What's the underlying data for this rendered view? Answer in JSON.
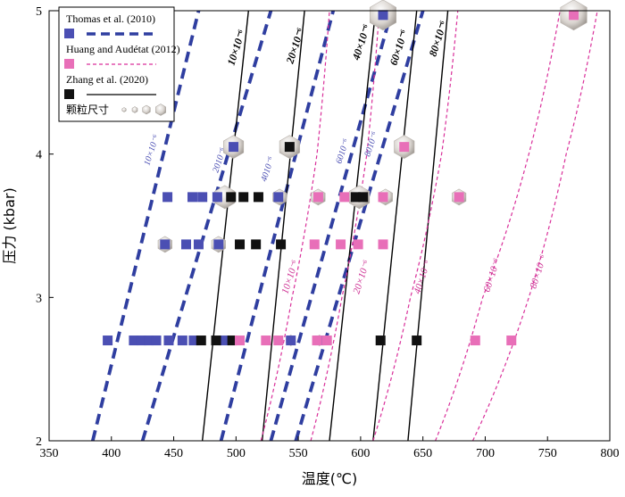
{
  "chart_data": {
    "type": "scatter",
    "xlabel": "温度(℃)",
    "ylabel": "压力 (kbar)",
    "xlim": [
      350,
      800
    ],
    "ylim": [
      2,
      5
    ],
    "xticks": [
      350,
      400,
      450,
      500,
      550,
      600,
      650,
      700,
      750,
      800
    ],
    "yticks": [
      2,
      3,
      4,
      5
    ],
    "colors": {
      "thomas": "#4b4fb3",
      "huang": "#e86fb8",
      "zhang": "#111111"
    },
    "legend": {
      "thomas": "Thomas et al. (2010)",
      "huang": "Huang and Audétat (2012)",
      "zhang": "Zhang et al. (2020)",
      "size": "颗粒尺寸"
    },
    "isolines": [
      {
        "series": "thomas",
        "label": "10×10⁻⁶",
        "points": [
          [
            385,
            2
          ],
          [
            470,
            5
          ]
        ]
      },
      {
        "series": "thomas",
        "label": "2010⁻⁶",
        "points": [
          [
            425,
            2
          ],
          [
            528,
            5
          ]
        ]
      },
      {
        "series": "thomas",
        "label": "4010⁻⁶",
        "points": [
          [
            488,
            2
          ],
          [
            578,
            5
          ]
        ]
      },
      {
        "series": "thomas",
        "label": "6010⁻⁶",
        "points": [
          [
            528,
            2
          ],
          [
            625,
            5
          ]
        ]
      },
      {
        "series": "thomas",
        "label": "8010⁻⁶",
        "points": [
          [
            548,
            2
          ],
          [
            650,
            5
          ]
        ]
      },
      {
        "series": "zhang",
        "label": "10×10⁻⁶",
        "points": [
          [
            473,
            2
          ],
          [
            510,
            5
          ]
        ]
      },
      {
        "series": "zhang",
        "label": "20×10⁻⁶",
        "points": [
          [
            521,
            2
          ],
          [
            555,
            5
          ]
        ]
      },
      {
        "series": "zhang",
        "label": "40×10⁻⁶",
        "points": [
          [
            575,
            2
          ],
          [
            612,
            5
          ]
        ]
      },
      {
        "series": "zhang",
        "label": "60×10⁻⁶",
        "points": [
          [
            610,
            2
          ],
          [
            645,
            5
          ]
        ]
      },
      {
        "series": "zhang",
        "label": "80×10⁻⁶",
        "points": [
          [
            638,
            2
          ],
          [
            670,
            5
          ]
        ]
      },
      {
        "series": "huang",
        "label": "10×10⁻⁶",
        "points": [
          [
            520,
            2
          ],
          [
            545,
            3
          ],
          [
            565,
            4
          ],
          [
            575,
            5
          ]
        ]
      },
      {
        "series": "huang",
        "label": "20×10⁻⁶",
        "points": [
          [
            560,
            2
          ],
          [
            585,
            3
          ],
          [
            605,
            4
          ],
          [
            615,
            5
          ]
        ]
      },
      {
        "series": "huang",
        "label": "40×10⁻⁶",
        "points": [
          [
            610,
            2
          ],
          [
            640,
            3
          ],
          [
            665,
            4
          ],
          [
            678,
            5
          ]
        ]
      },
      {
        "series": "huang",
        "label": "60×10⁻⁶",
        "points": [
          [
            660,
            2
          ],
          [
            698,
            3
          ],
          [
            735,
            4
          ],
          [
            760,
            5
          ]
        ]
      },
      {
        "series": "huang",
        "label": "80×10⁻⁶",
        "points": [
          [
            690,
            2
          ],
          [
            735,
            3
          ],
          [
            765,
            4
          ],
          [
            790,
            5
          ]
        ]
      }
    ],
    "points": [
      {
        "series": "thomas",
        "x": 397,
        "y": 2.7
      },
      {
        "series": "thomas",
        "x": 418,
        "y": 2.7
      },
      {
        "series": "thomas",
        "x": 424,
        "y": 2.7
      },
      {
        "series": "thomas",
        "x": 430,
        "y": 2.7
      },
      {
        "series": "thomas",
        "x": 436,
        "y": 2.7
      },
      {
        "series": "thomas",
        "x": 446,
        "y": 2.7
      },
      {
        "series": "thomas",
        "x": 457,
        "y": 2.7
      },
      {
        "series": "thomas",
        "x": 466,
        "y": 2.7
      },
      {
        "series": "thomas",
        "x": 490,
        "y": 2.7
      },
      {
        "series": "thomas",
        "x": 544,
        "y": 2.7
      },
      {
        "series": "thomas",
        "x": 567,
        "y": 2.7
      },
      {
        "series": "thomas",
        "x": 443,
        "y": 3.37
      },
      {
        "series": "thomas",
        "x": 460,
        "y": 3.37
      },
      {
        "series": "thomas",
        "x": 470,
        "y": 3.37
      },
      {
        "series": "thomas",
        "x": 486,
        "y": 3.37
      },
      {
        "series": "thomas",
        "x": 445,
        "y": 3.7
      },
      {
        "series": "thomas",
        "x": 465,
        "y": 3.7
      },
      {
        "series": "thomas",
        "x": 473,
        "y": 3.7
      },
      {
        "series": "thomas",
        "x": 485,
        "y": 3.7
      },
      {
        "series": "thomas",
        "x": 534,
        "y": 3.7
      },
      {
        "series": "thomas",
        "x": 498,
        "y": 4.05
      },
      {
        "series": "zhang",
        "x": 472,
        "y": 2.7
      },
      {
        "series": "zhang",
        "x": 484,
        "y": 2.7
      },
      {
        "series": "zhang",
        "x": 497,
        "y": 2.7
      },
      {
        "series": "zhang",
        "x": 616,
        "y": 2.7
      },
      {
        "series": "zhang",
        "x": 645,
        "y": 2.7
      },
      {
        "series": "zhang",
        "x": 503,
        "y": 3.37
      },
      {
        "series": "zhang",
        "x": 516,
        "y": 3.37
      },
      {
        "series": "zhang",
        "x": 536,
        "y": 3.37
      },
      {
        "series": "zhang",
        "x": 496,
        "y": 3.7
      },
      {
        "series": "zhang",
        "x": 506,
        "y": 3.7
      },
      {
        "series": "zhang",
        "x": 518,
        "y": 3.7
      },
      {
        "series": "zhang",
        "x": 596,
        "y": 3.7
      },
      {
        "series": "zhang",
        "x": 602,
        "y": 3.7
      },
      {
        "series": "zhang",
        "x": 543,
        "y": 4.05
      },
      {
        "series": "huang",
        "x": 503,
        "y": 2.7
      },
      {
        "series": "huang",
        "x": 524,
        "y": 2.7
      },
      {
        "series": "huang",
        "x": 534,
        "y": 2.7
      },
      {
        "series": "huang",
        "x": 565,
        "y": 2.7
      },
      {
        "series": "huang",
        "x": 573,
        "y": 2.7
      },
      {
        "series": "huang",
        "x": 692,
        "y": 2.7
      },
      {
        "series": "huang",
        "x": 721,
        "y": 2.7
      },
      {
        "series": "huang",
        "x": 563,
        "y": 3.37
      },
      {
        "series": "huang",
        "x": 584,
        "y": 3.37
      },
      {
        "series": "huang",
        "x": 598,
        "y": 3.37
      },
      {
        "series": "huang",
        "x": 618,
        "y": 3.37
      },
      {
        "series": "huang",
        "x": 566,
        "y": 3.7
      },
      {
        "series": "huang",
        "x": 587,
        "y": 3.7
      },
      {
        "series": "huang",
        "x": 618,
        "y": 3.7
      },
      {
        "series": "huang",
        "x": 679,
        "y": 3.7
      },
      {
        "series": "huang",
        "x": 635,
        "y": 4.05
      },
      {
        "series": "huang",
        "x": 771,
        "y": 4.97
      },
      {
        "series": "thomas",
        "x": 618,
        "y": 4.97
      }
    ],
    "grains": [
      {
        "x": 498,
        "y": 4.05,
        "size": 3
      },
      {
        "x": 543,
        "y": 4.05,
        "size": 3
      },
      {
        "x": 635,
        "y": 4.05,
        "size": 3
      },
      {
        "x": 491,
        "y": 3.7,
        "size": 3
      },
      {
        "x": 535,
        "y": 3.7,
        "size": 2
      },
      {
        "x": 566,
        "y": 3.7,
        "size": 2
      },
      {
        "x": 599,
        "y": 3.7,
        "size": 3
      },
      {
        "x": 620,
        "y": 3.7,
        "size": 2
      },
      {
        "x": 679,
        "y": 3.7,
        "size": 2
      },
      {
        "x": 443,
        "y": 3.37,
        "size": 2
      },
      {
        "x": 486,
        "y": 3.37,
        "size": 2
      },
      {
        "x": 618,
        "y": 4.97,
        "size": 4
      },
      {
        "x": 771,
        "y": 4.97,
        "size": 4
      },
      {
        "x": 567,
        "y": 2.7,
        "size": 1
      },
      {
        "x": 544,
        "y": 2.7,
        "size": 1
      }
    ]
  }
}
